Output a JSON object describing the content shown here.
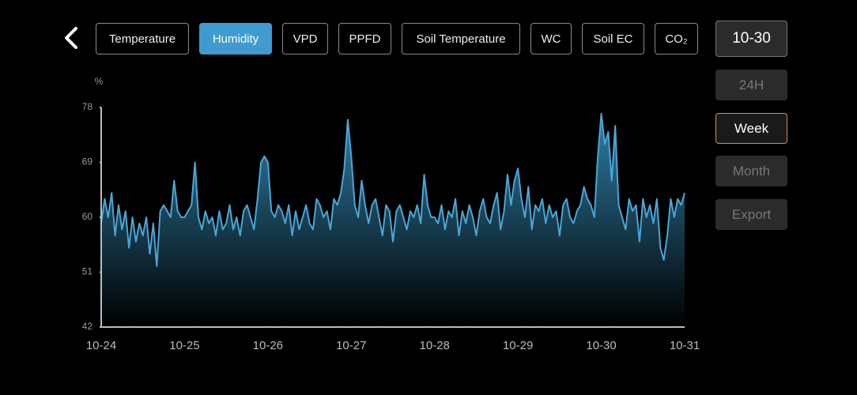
{
  "tabs": {
    "labels": [
      "Temperature",
      "Humidity",
      "VPD",
      "PPFD",
      "Soil Temperature",
      "WC",
      "Soil EC",
      "CO₂"
    ],
    "active": 1
  },
  "date_button": "10-30",
  "range_buttons": {
    "labels": [
      "24H",
      "Week",
      "Month",
      "Export"
    ],
    "active": 1
  },
  "chart_data": {
    "type": "area",
    "y_label": "%",
    "categories": [
      "10-24",
      null,
      null,
      null,
      null,
      null,
      null,
      null,
      null,
      null,
      null,
      null,
      null,
      null,
      null,
      null,
      null,
      null,
      null,
      null,
      null,
      null,
      null,
      null,
      "10-25",
      null,
      null,
      null,
      null,
      null,
      null,
      null,
      null,
      null,
      null,
      null,
      null,
      null,
      null,
      null,
      null,
      null,
      null,
      null,
      null,
      null,
      null,
      null,
      "10-26",
      null,
      null,
      null,
      null,
      null,
      null,
      null,
      null,
      null,
      null,
      null,
      null,
      null,
      null,
      null,
      null,
      null,
      null,
      null,
      null,
      null,
      null,
      null,
      "10-27",
      null,
      null,
      null,
      null,
      null,
      null,
      null,
      null,
      null,
      null,
      null,
      null,
      null,
      null,
      null,
      null,
      null,
      null,
      null,
      null,
      null,
      null,
      null,
      "10-28",
      null,
      null,
      null,
      null,
      null,
      null,
      null,
      null,
      null,
      null,
      null,
      null,
      null,
      null,
      null,
      null,
      null,
      null,
      null,
      null,
      null,
      null,
      null,
      "10-29",
      null,
      null,
      null,
      null,
      null,
      null,
      null,
      null,
      null,
      null,
      null,
      null,
      null,
      null,
      null,
      null,
      null,
      null,
      null,
      null,
      null,
      null,
      null,
      "10-30",
      null,
      null,
      null,
      null,
      null,
      null,
      null,
      null,
      null,
      null,
      null,
      null,
      null,
      null,
      null,
      null,
      null,
      null,
      null,
      null,
      null,
      null,
      null,
      "10-31"
    ],
    "values": [
      59,
      63,
      60,
      64,
      57,
      62,
      58,
      61,
      55,
      60,
      56,
      59,
      57,
      60,
      54,
      59,
      52,
      61,
      62,
      61,
      60,
      66,
      61,
      60,
      60,
      61,
      62,
      69,
      60,
      58,
      61,
      59,
      60,
      57,
      61,
      58,
      59,
      62,
      58,
      60,
      57,
      61,
      62,
      60,
      58,
      63,
      69,
      70,
      69,
      61,
      60,
      62,
      61,
      59,
      62,
      57,
      61,
      58,
      60,
      62,
      59,
      58,
      63,
      62,
      60,
      61,
      58,
      63,
      62,
      64,
      68,
      76,
      70,
      62,
      60,
      66,
      62,
      59,
      62,
      63,
      60,
      57,
      62,
      61,
      56,
      61,
      62,
      60,
      58,
      61,
      60,
      62,
      59,
      67,
      62,
      60,
      60,
      59,
      62,
      58,
      61,
      60,
      63,
      57,
      61,
      59,
      62,
      60,
      57,
      61,
      63,
      60,
      59,
      62,
      64,
      58,
      61,
      67,
      62,
      66,
      68,
      63,
      60,
      65,
      58,
      62,
      61,
      63,
      59,
      62,
      60,
      61,
      57,
      62,
      63,
      60,
      59,
      61,
      62,
      65,
      63,
      62,
      60,
      70,
      77,
      72,
      74,
      66,
      75,
      62,
      60,
      58,
      63,
      61,
      62,
      56,
      63,
      60,
      62,
      59,
      63,
      55,
      53,
      57,
      63,
      60,
      63,
      62,
      64
    ],
    "color": "#4aa6d6",
    "ylim": [
      42,
      78
    ],
    "yticks": [
      42,
      51,
      60,
      69,
      78
    ]
  }
}
